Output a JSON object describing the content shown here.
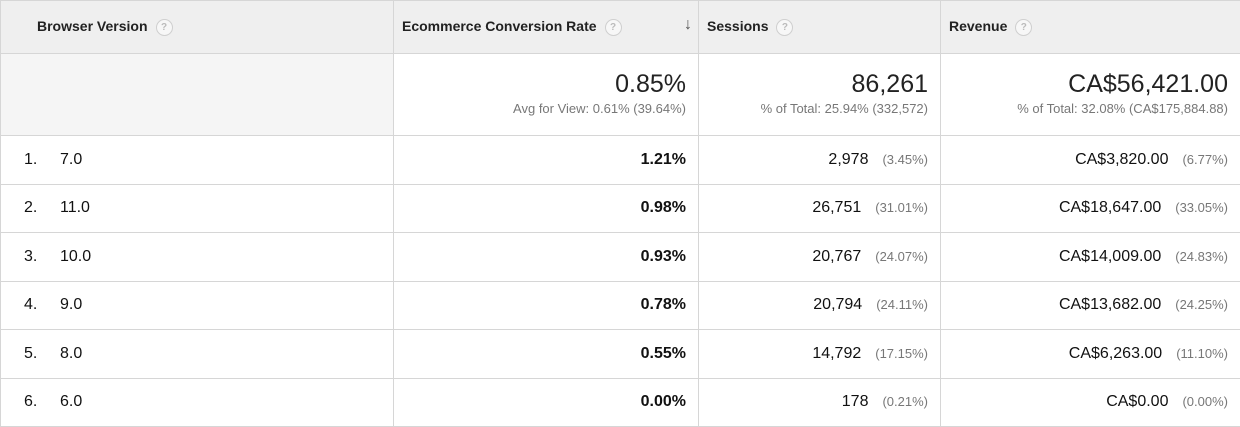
{
  "headers": {
    "browser_version": "Browser Version",
    "conversion_rate": "Ecommerce Conversion Rate",
    "sessions": "Sessions",
    "revenue": "Revenue",
    "help": "?",
    "sort_icon": "arrow-down-icon"
  },
  "totals": {
    "conversion_rate": {
      "value": "0.85%",
      "sub": "Avg for View: 0.61% (39.64%)"
    },
    "sessions": {
      "value": "86,261",
      "sub": "% of Total: 25.94% (332,572)"
    },
    "revenue": {
      "value": "CA$56,421.00",
      "sub": "% of Total: 32.08% (CA$175,884.88)"
    }
  },
  "rows": [
    {
      "index": "1.",
      "version": "7.0",
      "rate": "1.21%",
      "sessions": "2,978",
      "sessions_pct": "(3.45%)",
      "revenue": "CA$3,820.00",
      "revenue_pct": "(6.77%)"
    },
    {
      "index": "2.",
      "version": "11.0",
      "rate": "0.98%",
      "sessions": "26,751",
      "sessions_pct": "(31.01%)",
      "revenue": "CA$18,647.00",
      "revenue_pct": "(33.05%)"
    },
    {
      "index": "3.",
      "version": "10.0",
      "rate": "0.93%",
      "sessions": "20,767",
      "sessions_pct": "(24.07%)",
      "revenue": "CA$14,009.00",
      "revenue_pct": "(24.83%)"
    },
    {
      "index": "4.",
      "version": "9.0",
      "rate": "0.78%",
      "sessions": "20,794",
      "sessions_pct": "(24.11%)",
      "revenue": "CA$13,682.00",
      "revenue_pct": "(24.25%)"
    },
    {
      "index": "5.",
      "version": "8.0",
      "rate": "0.55%",
      "sessions": "14,792",
      "sessions_pct": "(17.15%)",
      "revenue": "CA$6,263.00",
      "revenue_pct": "(11.10%)"
    },
    {
      "index": "6.",
      "version": "6.0",
      "rate": "0.00%",
      "sessions": "178",
      "sessions_pct": "(0.21%)",
      "revenue": "CA$0.00",
      "revenue_pct": "(0.00%)"
    }
  ]
}
